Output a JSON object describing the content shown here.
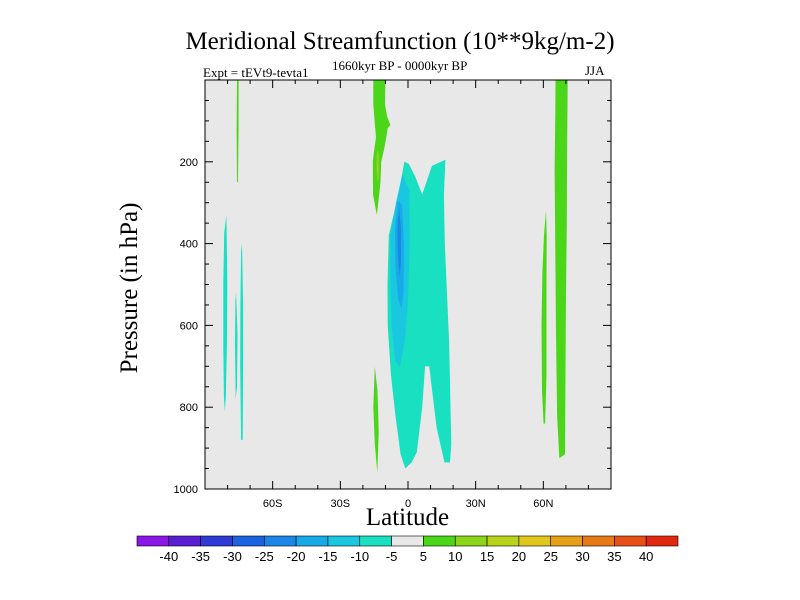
{
  "chart_data": {
    "type": "contour",
    "title": "Meridional Streamfunction (10**9kg/m-2)",
    "subtitle": "1660kyr BP - 0000kyr BP",
    "left_label": "Expt = tEVt9-tevta1",
    "right_label": "JJA",
    "xlabel": "Latitude",
    "ylabel": "Pressure (in hPa)",
    "xlim": [
      -90,
      90
    ],
    "ylim": [
      1000,
      0
    ],
    "x_ticks": [
      {
        "value": -60,
        "label": "60S"
      },
      {
        "value": -30,
        "label": "30S"
      },
      {
        "value": 0,
        "label": "0"
      },
      {
        "value": 30,
        "label": "30N"
      },
      {
        "value": 60,
        "label": "60N"
      }
    ],
    "y_ticks": [
      {
        "value": 200,
        "label": "200"
      },
      {
        "value": 400,
        "label": "400"
      },
      {
        "value": 600,
        "label": "600"
      },
      {
        "value": 800,
        "label": "800"
      },
      {
        "value": 1000,
        "label": "1000"
      }
    ],
    "colorbar": {
      "labels": [
        "-40",
        "-35",
        "-30",
        "-25",
        "-20",
        "-15",
        "-10",
        "-5",
        "5",
        "10",
        "15",
        "20",
        "25",
        "30",
        "35",
        "40"
      ],
      "colors": [
        "#8a17e6",
        "#5a1ed2",
        "#2f3ad6",
        "#1b62e0",
        "#1c86e8",
        "#18a9e8",
        "#19c8e0",
        "#19e0c0",
        "#e8e8e8",
        "#4cd61a",
        "#8ad41a",
        "#b8d41a",
        "#e0c81a",
        "#e6a016",
        "#e67a16",
        "#e65016",
        "#e0280e"
      ]
    },
    "background_color": "#e8e8e8",
    "regions": [
      {
        "name": "sh-high-lat-cell-a",
        "level": "-5",
        "color": "#19e0c0",
        "points": [
          [
            -80.5,
            330
          ],
          [
            -80.1,
            500
          ],
          [
            -80.3,
            650
          ],
          [
            -80.8,
            775
          ],
          [
            -81.2,
            810
          ],
          [
            -81.6,
            775
          ],
          [
            -81.9,
            650
          ],
          [
            -81.9,
            500
          ],
          [
            -81.5,
            375
          ]
        ]
      },
      {
        "name": "sh-high-lat-cell-b",
        "level": "-5",
        "color": "#19e0c0",
        "points": [
          [
            -73.6,
            400
          ],
          [
            -73.1,
            550
          ],
          [
            -73.1,
            700
          ],
          [
            -73.3,
            880
          ],
          [
            -74,
            880
          ],
          [
            -74.4,
            700
          ],
          [
            -74.3,
            550
          ],
          [
            -74.0,
            420
          ]
        ]
      },
      {
        "name": "sh-high-lat-cell-c",
        "level": "-5",
        "color": "#19e0c0",
        "points": [
          [
            -76.2,
            520
          ],
          [
            -75.6,
            620
          ],
          [
            -75.8,
            750
          ],
          [
            -76.4,
            780
          ],
          [
            -76.7,
            650
          ],
          [
            -76.5,
            540
          ]
        ]
      },
      {
        "name": "sh-high-lat-streak",
        "level": "5",
        "color": "#4cd61a",
        "points": [
          [
            -75.8,
            0
          ],
          [
            -75.1,
            0
          ],
          [
            -75.1,
            120
          ],
          [
            -75.4,
            250
          ],
          [
            -75.8,
            250
          ],
          [
            -76.0,
            120
          ]
        ]
      },
      {
        "name": "hadley-cell-outer",
        "level": "-5",
        "color": "#19e0c0",
        "points": [
          [
            -8.5,
            380
          ],
          [
            -3.9,
            270
          ],
          [
            -1.6,
            200
          ],
          [
            0.3,
            205
          ],
          [
            3.1,
            235
          ],
          [
            6.3,
            280
          ],
          [
            10.6,
            210
          ],
          [
            16.6,
            195
          ],
          [
            15.9,
            280
          ],
          [
            16.3,
            400
          ],
          [
            18.2,
            640
          ],
          [
            19.2,
            890
          ],
          [
            18.6,
            935
          ],
          [
            16.2,
            935
          ],
          [
            12.7,
            850
          ],
          [
            9.4,
            700
          ],
          [
            7.6,
            700
          ],
          [
            6.3,
            800
          ],
          [
            3.9,
            910
          ],
          [
            1.6,
            935
          ],
          [
            -1.2,
            950
          ],
          [
            -3.3,
            915
          ],
          [
            -5.6,
            820
          ],
          [
            -7.6,
            720
          ],
          [
            -9.0,
            600
          ],
          [
            -9.1,
            500
          ]
        ]
      },
      {
        "name": "hadley-cell-mid",
        "level": "-10",
        "color": "#19c8e0",
        "points": [
          [
            -7.8,
            380
          ],
          [
            -5.3,
            300
          ],
          [
            -2.5,
            230
          ],
          [
            0.6,
            270
          ],
          [
            0.8,
            400
          ],
          [
            -0.1,
            550
          ],
          [
            -1.4,
            640
          ],
          [
            -3.6,
            700
          ],
          [
            -5.6,
            690
          ],
          [
            -7.3,
            600
          ],
          [
            -7.9,
            480
          ]
        ]
      },
      {
        "name": "hadley-cell-inner",
        "level": "-15",
        "color": "#18a9e8",
        "points": [
          [
            -5.8,
            370
          ],
          [
            -4.6,
            295
          ],
          [
            -2.6,
            305
          ],
          [
            -1.8,
            400
          ],
          [
            -2.0,
            520
          ],
          [
            -2.9,
            560
          ],
          [
            -4.4,
            535
          ],
          [
            -5.5,
            460
          ]
        ]
      },
      {
        "name": "hadley-cell-core",
        "level": "-20",
        "color": "#1c86e8",
        "points": [
          [
            -4.6,
            345
          ],
          [
            -3.8,
            315
          ],
          [
            -3.2,
            360
          ],
          [
            -3.1,
            440
          ],
          [
            -3.6,
            480
          ],
          [
            -4.2,
            450
          ],
          [
            -4.7,
            400
          ]
        ]
      },
      {
        "name": "upper-positive-cell",
        "level": "5",
        "color": "#4cd61a",
        "points": [
          [
            -15.4,
            0
          ],
          [
            -10.0,
            0
          ],
          [
            -10.2,
            60
          ],
          [
            -9.2,
            90
          ],
          [
            -7.8,
            110
          ],
          [
            -9.0,
            118
          ],
          [
            -9.6,
            140
          ],
          [
            -10.6,
            170
          ],
          [
            -11.9,
            200
          ],
          [
            -12.2,
            250
          ],
          [
            -13.8,
            330
          ],
          [
            -15.5,
            280
          ],
          [
            -15.6,
            200
          ],
          [
            -15.2,
            180
          ],
          [
            -14.2,
            140
          ],
          [
            -14.8,
            100
          ],
          [
            -15.4,
            60
          ]
        ]
      },
      {
        "name": "upper-positive-core",
        "level": "10",
        "color": "#8ad41a",
        "points": [
          [
            -13.5,
            170
          ],
          [
            -12.8,
            185
          ],
          [
            -12.9,
            240
          ],
          [
            -13.5,
            250
          ],
          [
            -13.9,
            220
          ],
          [
            -13.9,
            190
          ]
        ]
      },
      {
        "name": "upper-positive-peak",
        "level": "15",
        "color": "#b8d41a",
        "points": [
          [
            -13.6,
            200
          ],
          [
            -13.2,
            210
          ],
          [
            -13.3,
            230
          ],
          [
            -13.6,
            225
          ]
        ]
      },
      {
        "name": "lower-positive-cell",
        "level": "5",
        "color": "#4cd61a",
        "points": [
          [
            -14.7,
            700
          ],
          [
            -13.5,
            760
          ],
          [
            -13.0,
            860
          ],
          [
            -13.6,
            960
          ],
          [
            -14.7,
            890
          ],
          [
            -15.4,
            800
          ]
        ]
      },
      {
        "name": "nh-mid-lat-cell",
        "level": "5",
        "color": "#4cd61a",
        "points": [
          [
            61.2,
            320
          ],
          [
            60.3,
            380
          ],
          [
            59.6,
            470
          ],
          [
            59.2,
            600
          ],
          [
            59.4,
            760
          ],
          [
            60.1,
            840
          ],
          [
            60.8,
            840
          ],
          [
            61.4,
            720
          ],
          [
            61.4,
            500
          ],
          [
            61.5,
            380
          ]
        ]
      },
      {
        "name": "nh-high-lat-cell",
        "level": "5",
        "color": "#4cd61a",
        "points": [
          [
            65.4,
            0
          ],
          [
            70.8,
            0
          ],
          [
            70.6,
            150
          ],
          [
            70.4,
            350
          ],
          [
            70.0,
            550
          ],
          [
            69.8,
            750
          ],
          [
            69.6,
            915
          ],
          [
            67.1,
            925
          ],
          [
            66.1,
            820
          ],
          [
            65.6,
            620
          ],
          [
            65.3,
            420
          ],
          [
            65.0,
            220
          ],
          [
            65.3,
            80
          ]
        ]
      }
    ]
  }
}
